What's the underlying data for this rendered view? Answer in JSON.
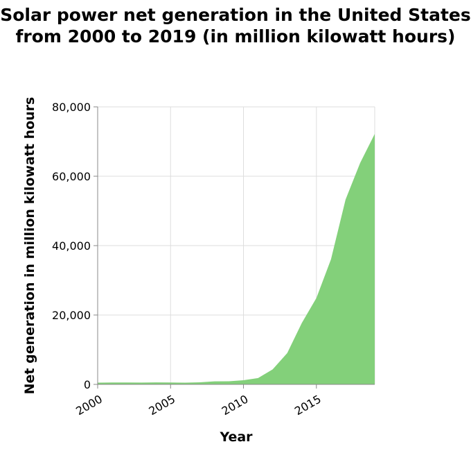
{
  "chart_data": {
    "type": "area",
    "title": "Solar power net generation in the United States from 2000 to 2019 (in million kilowatt hours)",
    "xlabel": "Year",
    "ylabel": "Net generation in million kilowatt hours",
    "x": [
      2000,
      2001,
      2002,
      2003,
      2004,
      2005,
      2006,
      2007,
      2008,
      2009,
      2010,
      2011,
      2012,
      2013,
      2014,
      2015,
      2016,
      2017,
      2018,
      2019
    ],
    "values": [
      493,
      543,
      555,
      534,
      575,
      550,
      508,
      612,
      864,
      891,
      1212,
      1818,
      4327,
      9036,
      17691,
      24893,
      36054,
      53287,
      63825,
      72200
    ],
    "xlim": [
      2000,
      2019
    ],
    "ylim": [
      0,
      80000
    ],
    "x_ticks": [
      2000,
      2005,
      2010,
      2015
    ],
    "x_tick_labels": [
      "2000",
      "2005",
      "2010",
      "2015"
    ],
    "y_ticks": [
      0,
      20000,
      40000,
      60000,
      80000
    ],
    "y_tick_labels": [
      "0",
      "20,000",
      "40,000",
      "60,000",
      "80,000"
    ],
    "grid": true,
    "fill_color": "#83d07a",
    "grid_color": "#dddddd",
    "axis_color": "#888888"
  }
}
